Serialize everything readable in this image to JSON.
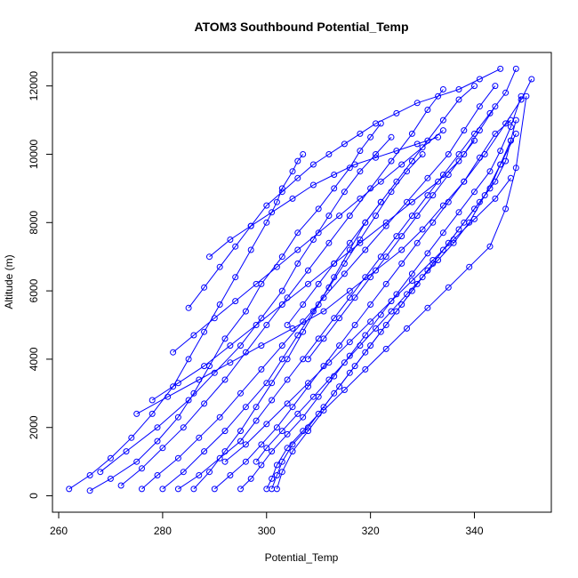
{
  "chart_data": {
    "type": "line",
    "title": "ATOM3 Southbound Potential_Temp",
    "xlabel": "Potential_Temp",
    "ylabel": "Altitude (m)",
    "xlim": [
      258.8,
      354.8
    ],
    "ylim": [
      -480,
      12980
    ],
    "xticks": [
      260,
      280,
      300,
      320,
      340
    ],
    "yticks": [
      0,
      2000,
      4000,
      6000,
      8000,
      10000,
      12000
    ],
    "grid": false,
    "legend": "none",
    "marker": "open-circle",
    "color": "#0000ff",
    "series": [
      {
        "x": [
          262,
          266,
          270,
          274,
          278,
          282,
          285,
          288,
          291,
          294,
          297,
          300,
          302,
          303,
          305,
          306,
          307
        ],
        "y": [
          200,
          600,
          1100,
          1700,
          2400,
          3200,
          4000,
          4800,
          5600,
          6400,
          7200,
          8000,
          8600,
          9000,
          9500,
          9800,
          10000
        ]
      },
      {
        "x": [
          266,
          270,
          275,
          279,
          283,
          286,
          289,
          292,
          296,
          299,
          303,
          306,
          310,
          313,
          316,
          318,
          320,
          322
        ],
        "y": [
          150,
          500,
          1000,
          1600,
          2300,
          3000,
          3800,
          4600,
          5400,
          6200,
          7000,
          7700,
          8400,
          9000,
          9600,
          10100,
          10500,
          10900
        ]
      },
      {
        "x": [
          272,
          276,
          280,
          284,
          288,
          292,
          296,
          300,
          304,
          308,
          312,
          316,
          320,
          324,
          328,
          331,
          334
        ],
        "y": [
          300,
          800,
          1400,
          2000,
          2700,
          3400,
          4200,
          5000,
          5800,
          6600,
          7400,
          8200,
          9000,
          9800,
          10600,
          11300,
          11900
        ]
      },
      {
        "x": [
          276,
          279,
          283,
          287,
          291,
          295,
          299,
          303,
          307,
          311,
          315,
          319,
          323,
          327,
          331,
          335,
          338,
          341,
          344
        ],
        "y": [
          200,
          600,
          1100,
          1700,
          2300,
          3000,
          3700,
          4400,
          5100,
          5800,
          6500,
          7200,
          7900,
          8600,
          9300,
          10000,
          10700,
          11400,
          12000
        ]
      },
      {
        "x": [
          280,
          284,
          288,
          292,
          296,
          300,
          303,
          306,
          309,
          312,
          315,
          318,
          321,
          324,
          327,
          330
        ],
        "y": [
          200,
          700,
          1300,
          1900,
          2600,
          3300,
          4000,
          4700,
          5400,
          6100,
          6800,
          7500,
          8200,
          8900,
          9500,
          10000
        ]
      },
      {
        "x": [
          283,
          287,
          291,
          295,
          298,
          301,
          304,
          307,
          310,
          313,
          316,
          319,
          322,
          325,
          328,
          331,
          334,
          337,
          340,
          343,
          346,
          348
        ],
        "y": [
          200,
          600,
          1100,
          1600,
          2200,
          2800,
          3400,
          4000,
          4600,
          5200,
          5800,
          6400,
          7000,
          7600,
          8200,
          8800,
          9400,
          10000,
          10600,
          11200,
          11800,
          12500
        ]
      },
      {
        "x": [
          286,
          289,
          292,
          295,
          298,
          301,
          304,
          307,
          310,
          313,
          316,
          319,
          322
        ],
        "y": [
          200,
          700,
          1300,
          1900,
          2600,
          3300,
          4000,
          4800,
          5600,
          6400,
          7200,
          8000,
          8600
        ]
      },
      {
        "x": [
          290,
          293,
          296,
          299,
          302,
          305,
          308,
          311,
          314,
          317,
          320,
          323,
          326,
          329,
          332,
          335,
          338,
          341,
          344,
          347
        ],
        "y": [
          200,
          600,
          1000,
          1500,
          2000,
          2600,
          3200,
          3800,
          4400,
          5000,
          5600,
          6200,
          6800,
          7400,
          8000,
          8600,
          9200,
          9900,
          10600,
          11000
        ]
      },
      {
        "x": [
          295,
          297,
          299,
          301,
          304,
          307,
          310,
          313,
          316,
          319,
          322,
          325,
          328,
          331,
          334,
          337,
          340,
          343,
          345,
          347,
          349
        ],
        "y": [
          200,
          500,
          900,
          1300,
          1800,
          2300,
          2900,
          3500,
          4100,
          4700,
          5300,
          5900,
          6500,
          7100,
          7700,
          8300,
          8900,
          9500,
          10100,
          10800,
          11700
        ]
      },
      {
        "x": [
          300,
          301,
          302,
          304,
          307,
          310,
          313,
          316,
          319,
          322,
          325,
          328,
          331,
          334,
          337,
          340,
          343,
          345,
          347,
          348
        ],
        "y": [
          200,
          500,
          900,
          1400,
          1900,
          2400,
          3000,
          3600,
          4200,
          4800,
          5400,
          6000,
          6600,
          7200,
          7800,
          8400,
          9000,
          9700,
          10400,
          11000
        ]
      },
      {
        "x": [
          301,
          302,
          303,
          305,
          308,
          311,
          314,
          317,
          320,
          323,
          326,
          329,
          332,
          335,
          338,
          341,
          344,
          346,
          347
        ],
        "y": [
          200,
          600,
          1000,
          1500,
          2000,
          2600,
          3200,
          3800,
          4400,
          5000,
          5600,
          6200,
          6800,
          7400,
          8000,
          8600,
          9200,
          9800,
          10400
        ]
      },
      {
        "x": [
          302,
          303,
          305,
          308,
          311,
          315,
          319,
          323,
          327,
          331,
          335,
          339,
          343,
          346,
          348,
          350
        ],
        "y": [
          200,
          700,
          1300,
          1900,
          2500,
          3100,
          3700,
          4300,
          4900,
          5500,
          6100,
          6700,
          7300,
          8400,
          9600,
          11700
        ]
      },
      {
        "x": [
          268,
          273,
          279,
          285,
          290,
          295,
          299,
          303,
          306,
          309,
          312,
          315,
          318,
          321,
          324
        ],
        "y": [
          700,
          1300,
          2000,
          2800,
          3600,
          4400,
          5200,
          6000,
          6800,
          7500,
          8200,
          8900,
          9500,
          10000,
          10500
        ]
      },
      {
        "x": [
          275,
          281,
          287,
          293,
          299,
          305,
          311,
          316,
          321,
          326,
          330,
          334,
          338,
          342,
          346,
          349,
          351
        ],
        "y": [
          2400,
          2900,
          3400,
          3900,
          4400,
          4900,
          5400,
          6000,
          6600,
          7200,
          7800,
          8500,
          9200,
          10000,
          10900,
          11600,
          12200
        ]
      },
      {
        "x": [
          285,
          288,
          291,
          294,
          297,
          300,
          303,
          306,
          309,
          312,
          315,
          318,
          321,
          325,
          329,
          333,
          337,
          341,
          345
        ],
        "y": [
          5500,
          6100,
          6700,
          7300,
          7900,
          8500,
          8900,
          9300,
          9700,
          10000,
          10300,
          10600,
          10900,
          11200,
          11500,
          11700,
          11900,
          12200,
          12500
        ]
      },
      {
        "x": [
          289,
          293,
          297,
          301,
          305,
          309,
          313,
          317,
          321,
          325,
          329,
          333
        ],
        "y": [
          7000,
          7500,
          7900,
          8300,
          8700,
          9100,
          9400,
          9700,
          9900,
          10100,
          10300,
          10500
        ]
      },
      {
        "x": [
          282,
          286,
          290,
          294,
          298,
          302,
          306,
          310,
          314,
          318,
          322,
          326,
          330,
          334
        ],
        "y": [
          4200,
          4700,
          5200,
          5700,
          6200,
          6700,
          7200,
          7700,
          8200,
          8700,
          9200,
          9700,
          10200,
          10700
        ]
      },
      {
        "x": [
          278,
          283,
          288,
          293,
          298,
          303,
          308,
          313,
          318,
          323,
          328,
          333,
          337,
          340
        ],
        "y": [
          2800,
          3300,
          3800,
          4400,
          5000,
          5600,
          6200,
          6800,
          7400,
          8000,
          8600,
          9200,
          9800,
          10400
        ]
      },
      {
        "x": [
          304,
          307,
          310,
          313,
          316,
          319,
          322,
          325,
          328,
          331,
          334,
          337,
          340
        ],
        "y": [
          5000,
          5600,
          6200,
          6800,
          7400,
          8000,
          8600,
          9200,
          9800,
          10400,
          11000,
          11600,
          12000
        ]
      },
      {
        "x": [
          308,
          311,
          314,
          317,
          320,
          323,
          326,
          329,
          332,
          335,
          338,
          341,
          344
        ],
        "y": [
          4000,
          4600,
          5200,
          5800,
          6400,
          7000,
          7600,
          8200,
          8800,
          9400,
          10000,
          10700,
          11400
        ]
      },
      {
        "x": [
          292,
          296,
          300,
          304,
          308,
          312,
          316,
          320,
          324,
          328,
          332,
          336,
          340,
          344,
          347
        ],
        "y": [
          1000,
          1500,
          2100,
          2700,
          3300,
          3900,
          4500,
          5100,
          5700,
          6300,
          6900,
          7500,
          8100,
          8700,
          9300
        ]
      },
      {
        "x": [
          298,
          300,
          303,
          306,
          309,
          312,
          315,
          318,
          321,
          324,
          327,
          330,
          333,
          336,
          339,
          342,
          345,
          348
        ],
        "y": [
          1000,
          1400,
          1900,
          2400,
          2900,
          3400,
          3900,
          4400,
          4900,
          5400,
          5900,
          6400,
          6900,
          7400,
          8000,
          8800,
          9700,
          10600
        ]
      }
    ]
  }
}
